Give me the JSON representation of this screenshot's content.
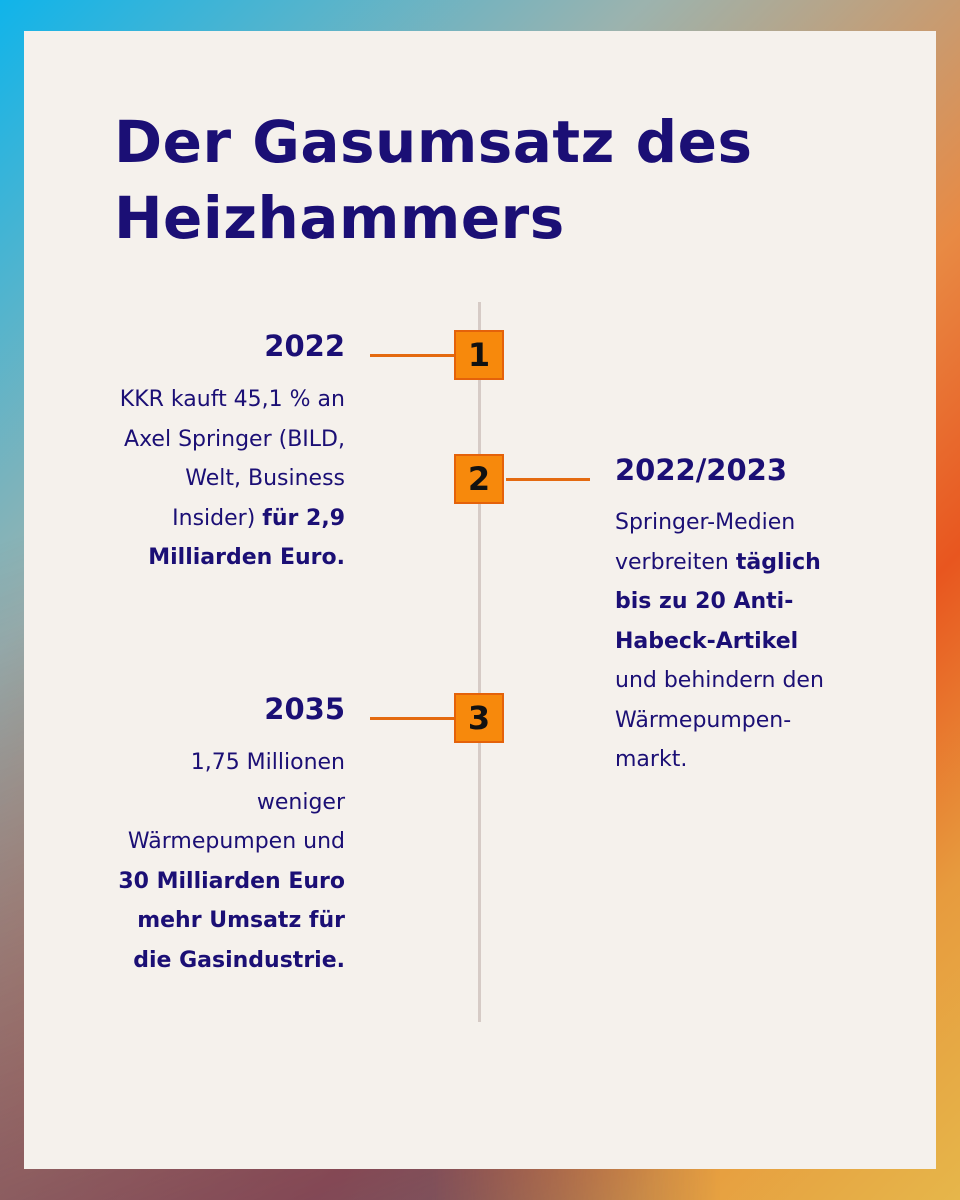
{
  "title": {
    "line1": "Der Gasumsatz des",
    "line2": "Heizhammers"
  },
  "colors": {
    "accent_orange": "#f7890c",
    "text_navy": "#1b0f75",
    "card_bg": "#f5f1ec"
  },
  "events": [
    {
      "number": "1",
      "year": "2022",
      "text_parts": [
        "KKR kauft 45,1 % an Axel Springer (BILD, Welt, Business Insider) ",
        "für 2,9 Milliarden Euro."
      ]
    },
    {
      "number": "2",
      "year": "2022/2023",
      "text_parts": [
        "Springer-Medien verbreiten ",
        "täglich bis zu 20 Anti-Habeck-Artikel",
        " und behindern den Wärmepumpen-markt."
      ]
    },
    {
      "number": "3",
      "year": "2035",
      "text_parts": [
        "1,75 Millionen weniger Wärmepumpen und ",
        "30 Milliarden Euro mehr Umsatz für die Gasindustrie."
      ]
    }
  ]
}
